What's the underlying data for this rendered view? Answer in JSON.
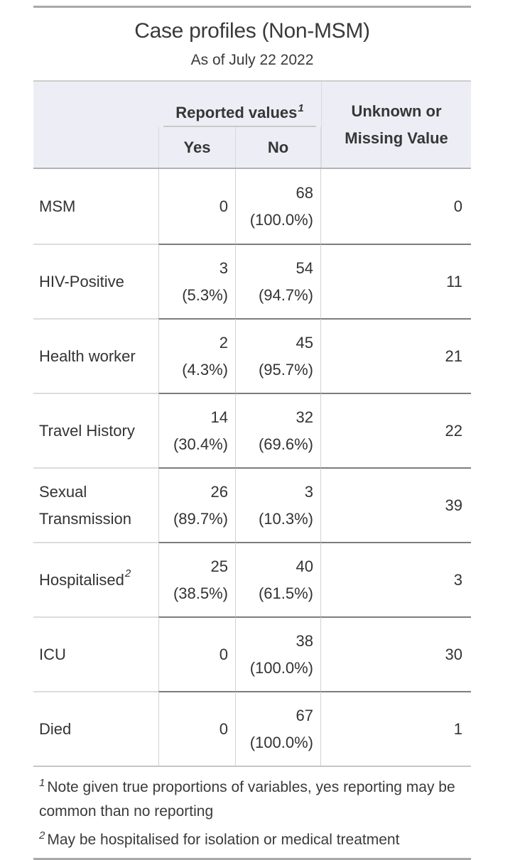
{
  "colors": {
    "rule_dark": "#a9a9a9",
    "band_bg": "#ededf5",
    "sep_dark": "#7d7d7d",
    "text": "#333333"
  },
  "chart_data": {
    "type": "table",
    "title": "Case profiles (Non-MSM)",
    "subtitle": "As of July 22 2022",
    "spanner": {
      "label": "Reported values",
      "footnote_mark": "1"
    },
    "columns": {
      "yes": "Yes",
      "no": "No",
      "unknown": "Unknown or Missing Value"
    },
    "rows": [
      {
        "label": "MSM",
        "label_footnote_mark": "",
        "yes_n": "0",
        "yes_pct": "",
        "no_n": "68",
        "no_pct": "(100.0%)",
        "unknown": "0"
      },
      {
        "label": "HIV-Positive",
        "label_footnote_mark": "",
        "yes_n": "3",
        "yes_pct": "(5.3%)",
        "no_n": "54",
        "no_pct": "(94.7%)",
        "unknown": "11"
      },
      {
        "label": "Health worker",
        "label_footnote_mark": "",
        "yes_n": "2",
        "yes_pct": "(4.3%)",
        "no_n": "45",
        "no_pct": "(95.7%)",
        "unknown": "21"
      },
      {
        "label": "Travel History",
        "label_footnote_mark": "",
        "yes_n": "14",
        "yes_pct": "(30.4%)",
        "no_n": "32",
        "no_pct": "(69.6%)",
        "unknown": "22"
      },
      {
        "label": "Sexual Transmission",
        "label_footnote_mark": "",
        "yes_n": "26",
        "yes_pct": "(89.7%)",
        "no_n": "3",
        "no_pct": "(10.3%)",
        "unknown": "39"
      },
      {
        "label": "Hospitalised",
        "label_footnote_mark": "2",
        "yes_n": "25",
        "yes_pct": "(38.5%)",
        "no_n": "40",
        "no_pct": "(61.5%)",
        "unknown": "3"
      },
      {
        "label": "ICU",
        "label_footnote_mark": "",
        "yes_n": "0",
        "yes_pct": "",
        "no_n": "38",
        "no_pct": "(100.0%)",
        "unknown": "30"
      },
      {
        "label": "Died",
        "label_footnote_mark": "",
        "yes_n": "0",
        "yes_pct": "",
        "no_n": "67",
        "no_pct": "(100.0%)",
        "unknown": "1"
      }
    ],
    "footnotes": [
      {
        "mark": "1",
        "text": "Note given true proportions of variables, yes reporting may be common than no reporting"
      },
      {
        "mark": "2",
        "text": "May be hospitalised for isolation or medical treatment"
      }
    ]
  }
}
